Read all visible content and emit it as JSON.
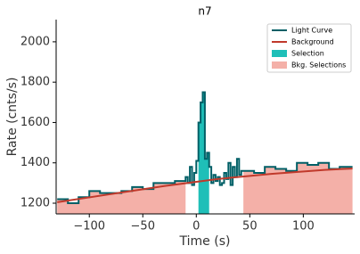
{
  "chart_data": {
    "type": "lightcurve",
    "title": "n7",
    "x_label": "Time (s)",
    "y_label": "Rate (cnts/s)",
    "xlim": [
      -131,
      148
    ],
    "ylim": [
      1147,
      2110
    ],
    "xticks": [
      {
        "value": -100,
        "label": "−100"
      },
      {
        "value": -50,
        "label": "−50"
      },
      0,
      50,
      100
    ],
    "yticks": [
      1200,
      1400,
      1600,
      1800,
      2000
    ],
    "legend": "upper right",
    "light_curve": {
      "name": "Light Curve",
      "color": "#005f66",
      "bins": [
        -130,
        -120,
        -110,
        -100,
        -90,
        -80,
        -70,
        -60,
        -50,
        -40,
        -30,
        -20,
        -10,
        -8,
        -6,
        -4,
        -2,
        0,
        2,
        4,
        6,
        8,
        10,
        12,
        14,
        16,
        18,
        20,
        22,
        24,
        26,
        28,
        30,
        32,
        34,
        36,
        38,
        40,
        42,
        44,
        54,
        64,
        74,
        84,
        94,
        104,
        114,
        124,
        134,
        146
      ],
      "values": [
        1220,
        1200,
        1230,
        1260,
        1250,
        1250,
        1260,
        1280,
        1270,
        1300,
        1300,
        1310,
        1330,
        1300,
        1380,
        1290,
        1350,
        1410,
        1600,
        1700,
        1750,
        1420,
        1450,
        1380,
        1300,
        1340,
        1310,
        1330,
        1290,
        1300,
        1350,
        1320,
        1400,
        1290,
        1380,
        1330,
        1420,
        1340,
        1360,
        1360,
        1350,
        1380,
        1370,
        1360,
        1400,
        1390,
        1400,
        1370,
        1380
      ]
    },
    "background": {
      "name": "Background",
      "color": "#c0392b",
      "x": [
        -130,
        -80,
        -30,
        20,
        70,
        120,
        146
      ],
      "values": [
        1205,
        1245,
        1285,
        1320,
        1345,
        1365,
        1372
      ]
    },
    "selections": [
      {
        "name": "Selection",
        "color": "#1fbfb8",
        "range": [
          2,
          12
        ]
      },
      {
        "name": "Bkg. Selections",
        "color": "#f4b0a8",
        "ranges": [
          [
            -130,
            -10
          ],
          [
            44,
            146
          ]
        ]
      }
    ]
  }
}
